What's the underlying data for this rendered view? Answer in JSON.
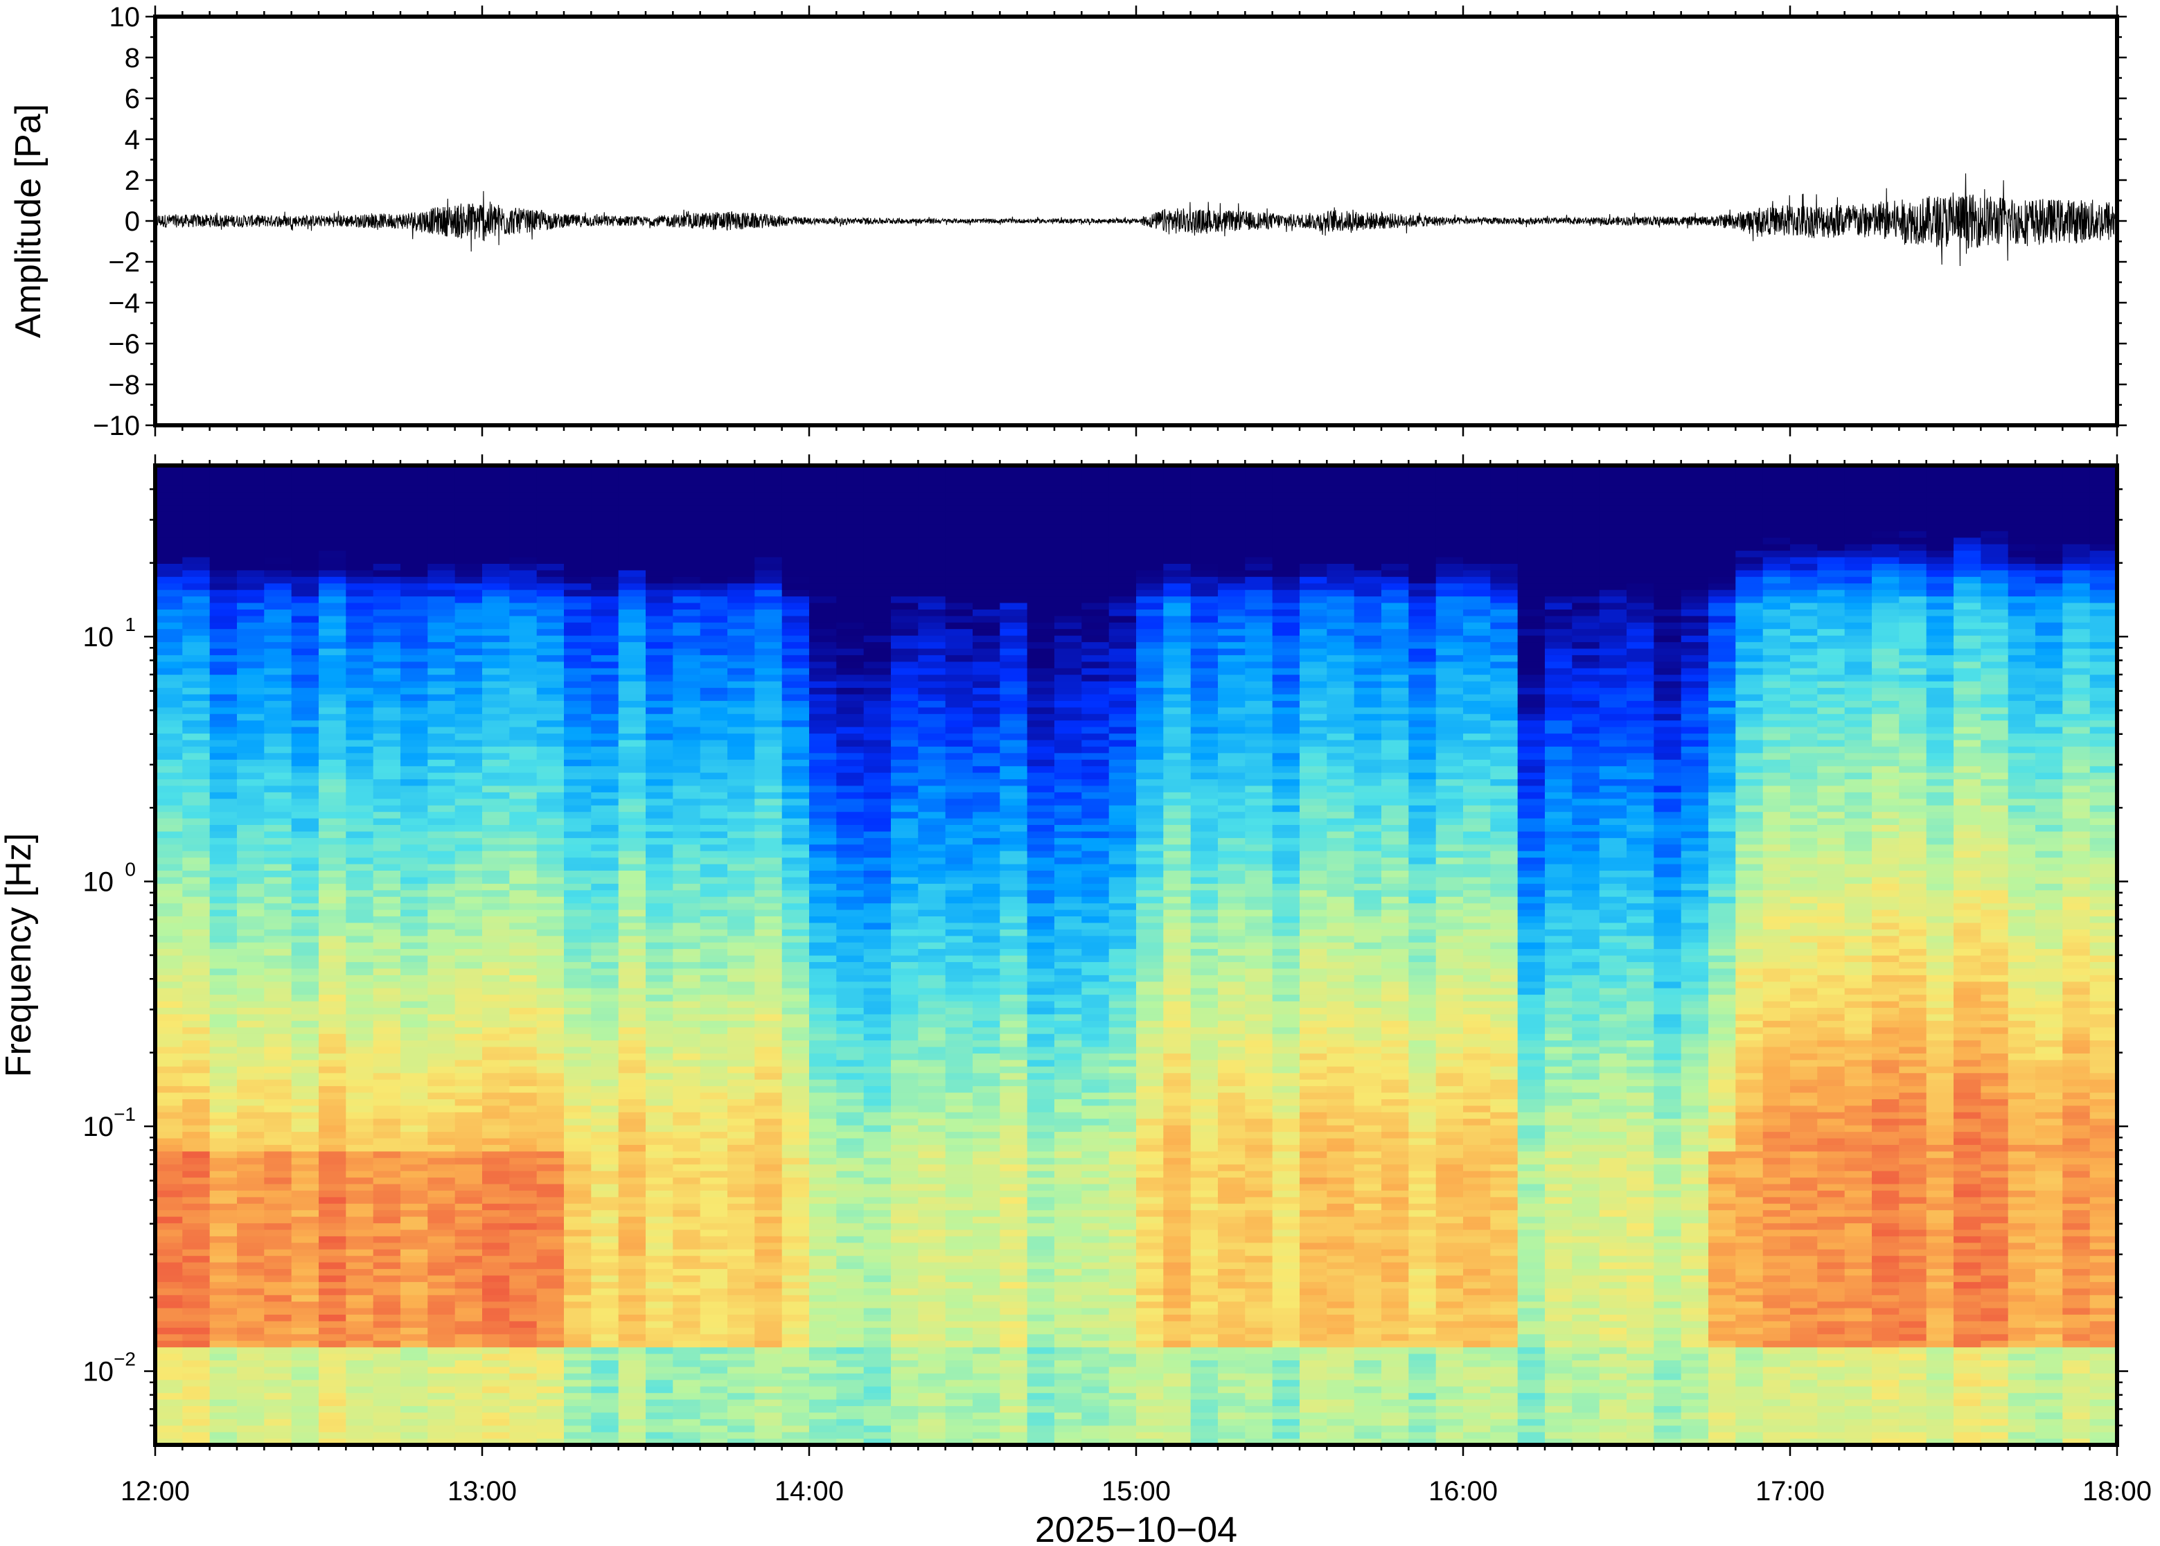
{
  "chart_data": [
    {
      "type": "line",
      "panel": "waveform",
      "ylabel": "Amplitude [Pa]",
      "ylim": [
        -10,
        10
      ],
      "yticks": [
        10,
        8,
        6,
        4,
        2,
        0,
        -2,
        -4,
        -6,
        -8,
        -10
      ],
      "ytick_labels": [
        "10",
        "8",
        "6",
        "4",
        "2",
        "0",
        "−2",
        "−4",
        "−6",
        "−8",
        "−10"
      ],
      "x_range": [
        "12:00",
        "18:00"
      ],
      "envelope": {
        "x_hours": [
          12.0,
          12.5,
          12.75,
          13.0,
          13.1,
          13.25,
          13.5,
          13.75,
          14.0,
          14.5,
          15.0,
          15.1,
          15.5,
          15.6,
          16.0,
          16.4,
          16.5,
          16.75,
          17.0,
          17.25,
          17.5,
          17.75,
          18.0
        ],
        "amplitude_pa": [
          0.6,
          0.5,
          0.7,
          1.9,
          1.2,
          0.6,
          0.4,
          0.9,
          0.3,
          0.2,
          0.2,
          1.2,
          0.6,
          1.0,
          0.3,
          0.3,
          0.4,
          0.4,
          1.5,
          1.6,
          2.5,
          2.0,
          1.9
        ]
      },
      "color": "#000000"
    },
    {
      "type": "heatmap",
      "panel": "spectrogram",
      "ylabel": "Frequency [Hz]",
      "yscale": "log",
      "ylim_hz": [
        0.005,
        50
      ],
      "yticks_hz": [
        0.01,
        0.1,
        1,
        10
      ],
      "ytick_labels": [
        {
          "base": "10",
          "exp": "−2"
        },
        {
          "base": "10",
          "exp": "−1"
        },
        {
          "base": "10",
          "exp": "0"
        },
        {
          "base": "10",
          "exp": "1"
        }
      ],
      "xlabel": "2025−10−04",
      "x_ticks": [
        "12:00",
        "13:00",
        "14:00",
        "15:00",
        "16:00",
        "17:00",
        "18:00"
      ],
      "colormap": "jet",
      "colormap_stops": [
        "#0b007f",
        "#0030ff",
        "#00a0ff",
        "#4ee0e8",
        "#b8f5a0",
        "#f8e870",
        "#fbb050",
        "#f06040"
      ],
      "quiet_periods": [
        [
          14.0,
          15.0
        ],
        [
          16.2,
          16.75
        ]
      ],
      "loud_periods": [
        [
          12.0,
          13.25
        ],
        [
          16.8,
          18.0
        ]
      ]
    }
  ]
}
